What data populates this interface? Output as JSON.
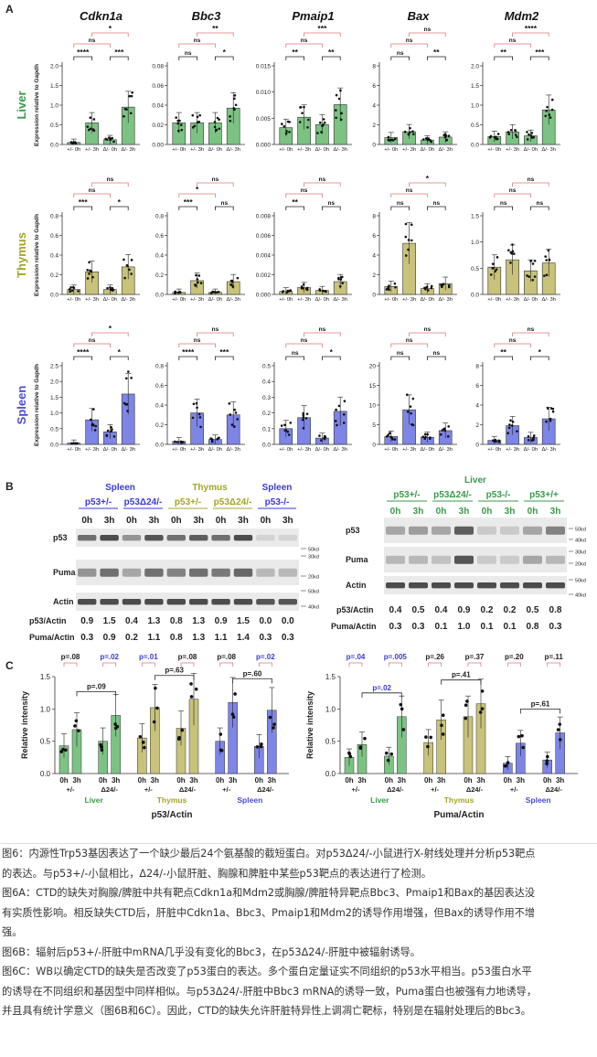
{
  "figure": {
    "panel_labels": [
      "A",
      "B",
      "C"
    ],
    "genes": [
      "Cdkn1a",
      "Bbc3",
      "Pmaip1",
      "Bax",
      "Mdm2"
    ],
    "tissues": [
      {
        "name": "Liver",
        "color": "#3a9a4a",
        "bar": "#7cc383",
        "pink": "#f08a8a"
      },
      {
        "name": "Thymus",
        "color": "#a5a328",
        "bar": "#c8c27a",
        "pink": "#f08a8a"
      },
      {
        "name": "Spleen",
        "color": "#4b4bd6",
        "bar": "#7d85e6",
        "pink": "#f08a8a"
      }
    ],
    "ylabel": "Expression relative to Gapdh",
    "xticks": [
      "+/- 0h",
      "+/- 3h",
      "Δ/- 0h",
      "Δ/- 3h"
    ],
    "panelA": [
      [
        {
          "yticks": [
            "0.0",
            "0.5",
            "1.0",
            "1.5",
            "2.0"
          ],
          "ymax": 2.0,
          "values": [
            0.05,
            0.55,
            0.12,
            0.95
          ],
          "sig": [
            "****",
            "***",
            "ns",
            "*"
          ]
        },
        {
          "yticks": [
            "0.00",
            "0.02",
            "0.04",
            "0.06",
            "0.08"
          ],
          "ymax": 0.08,
          "values": [
            0.022,
            0.022,
            0.022,
            0.037
          ],
          "sig": [
            "ns",
            "*",
            "ns",
            "**"
          ]
        },
        {
          "yticks": [
            "0.000",
            "0.005",
            "0.010",
            "0.015"
          ],
          "ymax": 0.015,
          "values": [
            0.0032,
            0.0052,
            0.0038,
            0.0076
          ],
          "sig": [
            "**",
            "**",
            "ns",
            "***"
          ]
        },
        {
          "yticks": [
            "0",
            "2",
            "4",
            "6",
            "8"
          ],
          "ymax": 8,
          "values": [
            0.7,
            1.3,
            0.45,
            0.75
          ],
          "sig": [
            "ns",
            "**",
            "ns",
            "ns"
          ]
        },
        {
          "yticks": [
            "0.0",
            "0.5",
            "1.0",
            "1.5",
            "2.0"
          ],
          "ymax": 2.0,
          "values": [
            0.2,
            0.32,
            0.22,
            0.88
          ],
          "sig": [
            "**",
            "***",
            "ns",
            "****"
          ]
        }
      ],
      [
        {
          "yticks": [
            "0.0",
            "0.2",
            "0.4",
            "0.6",
            "0.8"
          ],
          "ymax": 0.8,
          "values": [
            0.05,
            0.23,
            0.05,
            0.28
          ],
          "sig": [
            "***",
            "*",
            "ns",
            "ns"
          ]
        },
        {
          "yticks": [
            "0.0",
            "0.2",
            "0.4",
            "0.6",
            "0.8"
          ],
          "ymax": 0.8,
          "values": [
            0.02,
            0.14,
            0.02,
            0.13
          ],
          "sig": [
            "***",
            "ns",
            "*",
            "ns"
          ]
        },
        {
          "yticks": [
            "0.000",
            "0.002",
            "0.004",
            "0.006",
            "0.008"
          ],
          "ymax": 0.008,
          "values": [
            0.0003,
            0.0007,
            0.0004,
            0.0013
          ],
          "sig": [
            "**",
            "ns",
            "ns",
            "ns"
          ]
        },
        {
          "yticks": [
            "0",
            "2",
            "4",
            "6",
            "8"
          ],
          "ymax": 8,
          "values": [
            0.8,
            5.2,
            0.6,
            1.1
          ],
          "sig": [
            "ns",
            "ns",
            "ns",
            "*"
          ]
        },
        {
          "yticks": [
            "0.0",
            "0.5",
            "1.0",
            "1.5"
          ],
          "ymax": 1.5,
          "values": [
            0.52,
            0.66,
            0.45,
            0.6
          ],
          "sig": [
            "ns",
            "ns",
            "ns",
            "ns"
          ]
        }
      ],
      [
        {
          "yticks": [
            "0.0",
            "0.5",
            "1.0",
            "1.5",
            "2.0",
            "2.5"
          ],
          "ymax": 2.5,
          "values": [
            0.04,
            0.78,
            0.4,
            1.6
          ],
          "sig": [
            "****",
            "*",
            "ns",
            "*"
          ]
        },
        {
          "yticks": [
            "0.0",
            "0.2",
            "0.4",
            "0.6",
            "0.8"
          ],
          "ymax": 0.8,
          "values": [
            0.03,
            0.32,
            0.05,
            0.3
          ],
          "sig": [
            "****",
            "***",
            "ns",
            "ns"
          ]
        },
        {
          "yticks": [
            "0.0",
            "0.1",
            "0.2",
            "0.3",
            "0.4",
            "0.5"
          ],
          "ymax": 0.5,
          "values": [
            0.1,
            0.17,
            0.04,
            0.21
          ],
          "sig": [
            "ns",
            "*",
            "ns",
            "ns"
          ]
        },
        {
          "yticks": [
            "0",
            "5",
            "10",
            "15",
            "20"
          ],
          "ymax": 20,
          "values": [
            2.0,
            8.8,
            1.8,
            3.5
          ],
          "sig": [
            "ns",
            "ns",
            "ns",
            "ns"
          ]
        },
        {
          "yticks": [
            "0",
            "2",
            "4",
            "6",
            "8"
          ],
          "ymax": 8,
          "values": [
            0.4,
            1.9,
            0.7,
            2.6
          ],
          "sig": [
            "**",
            "*",
            "ns",
            "ns"
          ]
        }
      ]
    ],
    "panelB": {
      "left": {
        "groups": [
          {
            "label": "Spleen",
            "sub": "p53+/-",
            "color": "#3a3ad6"
          },
          {
            "label": "",
            "sub": "p53Δ24/-",
            "color": "#3a3ad6"
          },
          {
            "label": "Thymus",
            "sub": "p53+/-",
            "color": "#a5a328"
          },
          {
            "label": "",
            "sub": "p53Δ24/-",
            "color": "#a5a328"
          },
          {
            "label": "Spleen",
            "sub": "p53-/-",
            "color": "#3a3ad6"
          }
        ],
        "lanes": [
          "0h",
          "3h",
          "0h",
          "3h",
          "0h",
          "3h",
          "0h",
          "3h",
          "0h",
          "3h"
        ],
        "rows": [
          "p53",
          "Puma",
          "Actin"
        ],
        "markers": [
          "50kd",
          "30kd",
          "20kd",
          "50kd",
          "40kd"
        ],
        "p53_actin_label": "p53/Actin",
        "puma_actin_label": "Puma/Actin",
        "p53_actin": [
          "0.9",
          "1.5",
          "0.4",
          "1.3",
          "0.8",
          "1.3",
          "0.9",
          "1.5",
          "0.0",
          "0.0"
        ],
        "puma_actin": [
          "0.3",
          "0.9",
          "0.2",
          "1.1",
          "0.8",
          "1.3",
          "1.1",
          "1.4",
          "0.3",
          "0.3"
        ]
      },
      "right": {
        "title": "Liver",
        "groups": [
          "p53+/-",
          "p53Δ24/-",
          "p53-/-",
          "p53+/+"
        ],
        "lanes": [
          "0h",
          "3h",
          "0h",
          "3h",
          "0h",
          "3h",
          "0h",
          "3h"
        ],
        "rows": [
          "p53",
          "Puma",
          "Actin"
        ],
        "markers": [
          "50kd",
          "40kd",
          "30kd",
          "20kd",
          "50kd",
          "40kd"
        ],
        "p53_actin_label": "p53/Actin",
        "puma_actin_label": "Puma/Actin",
        "p53_actin": [
          "0.4",
          "0.5",
          "0.4",
          "0.9",
          "0.2",
          "0.2",
          "0.5",
          "0.8"
        ],
        "puma_actin": [
          "0.3",
          "0.3",
          "0.1",
          "1.0",
          "0.1",
          "0.1",
          "0.8",
          "0.3"
        ]
      }
    },
    "panelC": {
      "left": {
        "ylabel": "Relative intensity",
        "xlabel": "p53/Actin",
        "yticks": [
          "0.0",
          "0.5",
          "1.0",
          "1.5"
        ],
        "ymax": 1.5,
        "top_p": [
          "p=.08",
          "p=.02",
          "p=.01",
          "p=.08",
          "p=.08",
          "p=.02"
        ],
        "mid_p": [
          "p=.09",
          "p=.63",
          "p=.60"
        ],
        "values": [
          0.43,
          0.68,
          0.5,
          0.9,
          0.55,
          1.02,
          0.7,
          1.15,
          0.5,
          1.1,
          0.42,
          0.98
        ],
        "tissue_labels": [
          "Liver",
          "Thymus",
          "Spleen"
        ],
        "genotypes": [
          "+/-",
          "Δ24/-",
          "+/-",
          "Δ24/-",
          "+/-",
          "Δ24/-"
        ]
      },
      "right": {
        "ylabel": "Relative intensity",
        "xlabel": "Puma/Actin",
        "yticks": [
          "0.0",
          "0.5",
          "1.0",
          "1.5"
        ],
        "ymax": 1.5,
        "top_p": [
          "p=.04",
          "p=.005",
          "p=.26",
          "p=.37",
          "p=.20",
          "p=.11"
        ],
        "mid_p": [
          "p=.02",
          "p=.41",
          "p=.61"
        ],
        "values": [
          0.25,
          0.45,
          0.27,
          0.88,
          0.48,
          0.83,
          0.88,
          1.08,
          0.16,
          0.47,
          0.21,
          0.63
        ],
        "tissue_labels": [
          "Liver",
          "Thymus",
          "Spleen"
        ],
        "genotypes": [
          "+/-",
          "Δ24/-",
          "+/-",
          "Δ24/-",
          "+/-",
          "Δ24/-"
        ]
      }
    }
  },
  "caption": [
    "图6：内源性Trp53基因表达了一个缺少最后24个氨基酸的截短蛋白。对p53Δ24/-小鼠进行X-射线处理并分析p53靶点",
    "的表达。与p53+/-小鼠相比，Δ24/-小鼠肝脏、胸腺和脾脏中某些p53靶点的表达进行了检测。",
    "图6A：CTD的缺失对胸腺/脾脏中共有靶点Cdkn1a和Mdm2或胸腺/脾脏特异靶点Bbc3、Pmaip1和Bax的基因表达没",
    "有实质性影响。相反缺失CTD后，肝脏中Cdkn1a、Bbc3、Pmaip1和Mdm2的诱导作用增强，但Bax的诱导作用不增",
    "强。",
    "图6B：辐射后p53+/-肝脏中mRNA几乎没有变化的Bbc3，在p53Δ24/-肝脏中被辐射诱导。",
    "图6C：WB以确定CTD的缺失是否改变了p53蛋白的表达。多个蛋白定量证实不同组织的p53水平相当。p53蛋白水平",
    "的诱导在不同组织和基因型中同样相似。与p53Δ24/-肝脏中Bbc3 mRNA的诱导一致，Puma蛋白也被强有力地诱导，",
    "并且具有统计学意义（图6B和6C）。因此，CTD的缺失允许肝脏特异性上调凋亡靶标，特别是在辐射处理后的Bbc3。"
  ]
}
